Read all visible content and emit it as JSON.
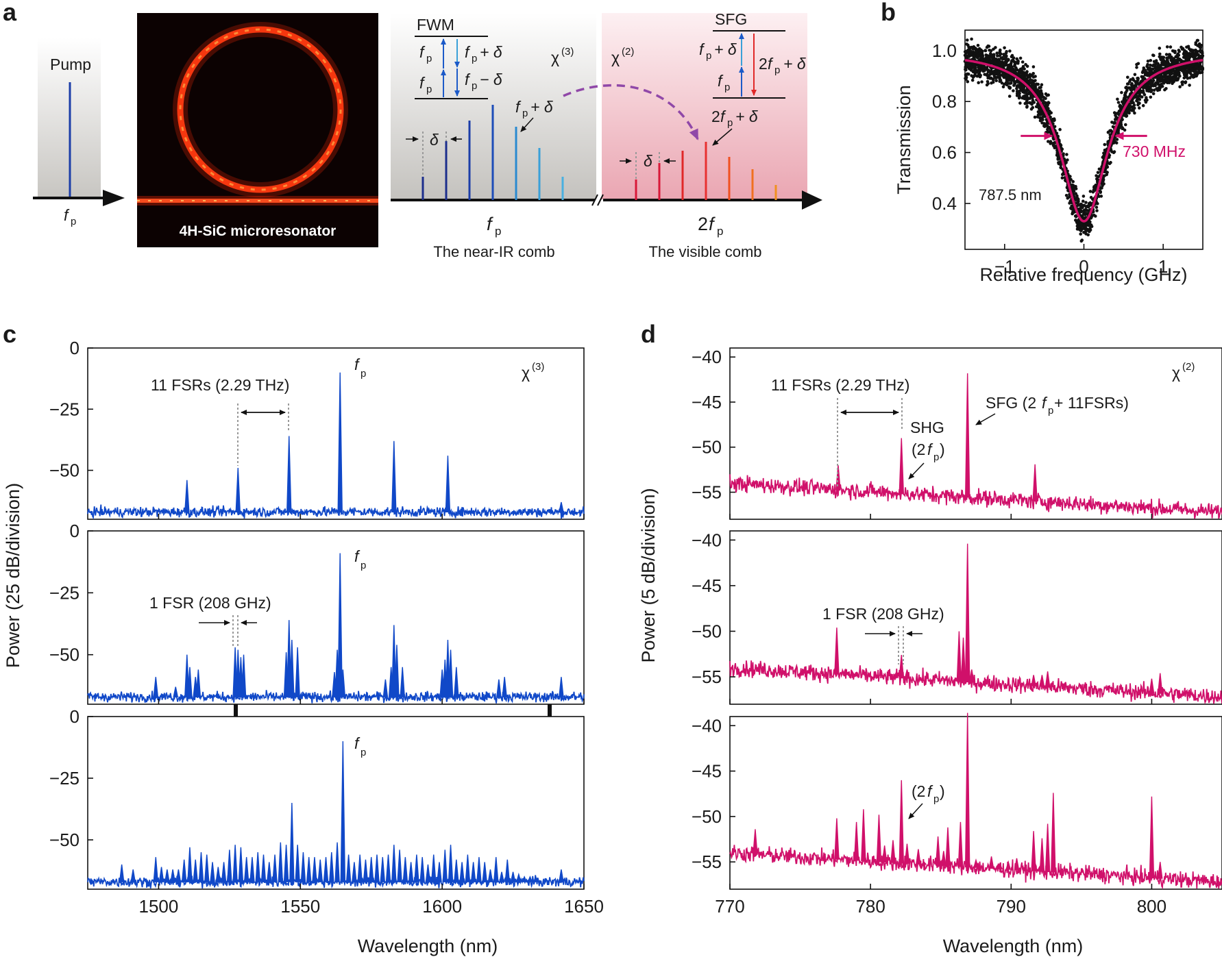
{
  "panel_labels": [
    "a",
    "b",
    "c",
    "d"
  ],
  "schematic": {
    "pump": "Pump",
    "fp": "f",
    "p": "p",
    "ring_label": "4H-SiC microresonator",
    "fwm": "FWM",
    "sfg": "SFG",
    "chi3": "χ",
    "chi3_sup": "(3)",
    "chi2": "χ",
    "chi2_sup": "(2)",
    "plus_delta": "+ δ",
    "minus_delta": "− δ",
    "two": "2",
    "delta": "δ",
    "nearir_caption": "The near-IR comb",
    "visible_caption": "The visible comb"
  },
  "colors": {
    "blue": "#1048c8",
    "magenta": "#d0106a",
    "purple_arrow": "#9048a8",
    "dark_blue": "#1c2e8c",
    "light_blue": "#3aa0d8",
    "red": "#e02828",
    "orange": "#f08020"
  },
  "chart_data": [
    {
      "panel": "b",
      "type": "scatter",
      "xlabel": "Relative frequency (GHz)",
      "ylabel": "Transmission",
      "xlim": [
        -1.5,
        1.5
      ],
      "ylim": [
        0.22,
        1.08
      ],
      "xticks": [
        "−1",
        "0",
        "1"
      ],
      "yticks": [
        "0.4",
        "0.6",
        "0.8",
        "1.0"
      ],
      "ytick_values": [
        0.4,
        0.6,
        0.8,
        1.0
      ],
      "xtick_values": [
        -1,
        0,
        1
      ],
      "fit": {
        "center": 0.0,
        "fwhm_ghz": 0.73,
        "min": 0.33,
        "baseline": 1.0
      },
      "annotations": {
        "linewidth": "730 MHz",
        "wavelength": "787.5 nm"
      }
    },
    {
      "panel": "c",
      "type": "line",
      "xlabel": "Wavelength (nm)",
      "ylabel": "Power  (25 dB/division)",
      "xlim": [
        1475,
        1650
      ],
      "ylim": [
        -70,
        0
      ],
      "xticks": [
        "1500",
        "1550",
        "1600",
        "1650"
      ],
      "xtick_values": [
        1500,
        1550,
        1600,
        1650
      ],
      "yticks": [
        "0",
        "−25",
        "−50"
      ],
      "ytick_values": [
        0,
        -25,
        -50
      ],
      "noise_floor": -67,
      "subpanels": [
        {
          "peaks": [
            [
              1510,
              -54
            ],
            [
              1528,
              -49
            ],
            [
              1546,
              -36
            ],
            [
              1564,
              -10
            ],
            [
              1583,
              -38
            ],
            [
              1602,
              -44
            ],
            [
              1642,
              -63
            ]
          ],
          "annotations": {
            "fsr": "11 FSRs (2.29 THz)",
            "chi": "χ",
            "chi_sup": "(3)"
          }
        },
        {
          "peaks": [
            [
              1499,
              -59
            ],
            [
              1506,
              -63
            ],
            [
              1510,
              -50
            ],
            [
              1511,
              -55
            ],
            [
              1513,
              -59
            ],
            [
              1514,
              -56
            ],
            [
              1527,
              -47
            ],
            [
              1528,
              -48
            ],
            [
              1529,
              -51
            ],
            [
              1530,
              -50
            ],
            [
              1545,
              -49
            ],
            [
              1546,
              -36
            ],
            [
              1547,
              -44
            ],
            [
              1549,
              -47
            ],
            [
              1562,
              -57
            ],
            [
              1563,
              -48
            ],
            [
              1564,
              -9
            ],
            [
              1565,
              -56
            ],
            [
              1580,
              -60
            ],
            [
              1582,
              -55
            ],
            [
              1583,
              -38
            ],
            [
              1584,
              -46
            ],
            [
              1586,
              -55
            ],
            [
              1600,
              -56
            ],
            [
              1601,
              -52
            ],
            [
              1602,
              -44
            ],
            [
              1603,
              -48
            ],
            [
              1605,
              -55
            ],
            [
              1620,
              -60
            ],
            [
              1622,
              -59
            ],
            [
              1642,
              -59
            ]
          ],
          "annotations": {
            "fsr": "1 FSR (208 GHz)"
          }
        },
        {
          "peaks": [
            [
              1487,
              -60
            ],
            [
              1491,
              -62
            ],
            [
              1499,
              -57
            ],
            [
              1501,
              -61
            ],
            [
              1503,
              -62
            ],
            [
              1505,
              -62
            ],
            [
              1507,
              -62
            ],
            [
              1509,
              -58
            ],
            [
              1511,
              -53
            ],
            [
              1513,
              -58
            ],
            [
              1515,
              -55
            ],
            [
              1517,
              -56
            ],
            [
              1519,
              -59
            ],
            [
              1521,
              -61
            ],
            [
              1523,
              -59
            ],
            [
              1525,
              -54
            ],
            [
              1527,
              -52
            ],
            [
              1529,
              -53
            ],
            [
              1531,
              -57
            ],
            [
              1533,
              -57
            ],
            [
              1535,
              -55
            ],
            [
              1537,
              -56
            ],
            [
              1539,
              -59
            ],
            [
              1541,
              -56
            ],
            [
              1543,
              -51
            ],
            [
              1545,
              -52
            ],
            [
              1547,
              -35
            ],
            [
              1549,
              -52
            ],
            [
              1551,
              -55
            ],
            [
              1553,
              -57
            ],
            [
              1555,
              -57
            ],
            [
              1557,
              -58
            ],
            [
              1559,
              -57
            ],
            [
              1561,
              -55
            ],
            [
              1563,
              -51
            ],
            [
              1565,
              -10
            ],
            [
              1567,
              -56
            ],
            [
              1569,
              -59
            ],
            [
              1571,
              -56
            ],
            [
              1573,
              -58
            ],
            [
              1575,
              -57
            ],
            [
              1577,
              -56
            ],
            [
              1579,
              -57
            ],
            [
              1581,
              -56
            ],
            [
              1583,
              -52
            ],
            [
              1585,
              -54
            ],
            [
              1587,
              -57
            ],
            [
              1589,
              -59
            ],
            [
              1591,
              -56
            ],
            [
              1593,
              -57
            ],
            [
              1595,
              -60
            ],
            [
              1597,
              -56
            ],
            [
              1599,
              -59
            ],
            [
              1601,
              -54
            ],
            [
              1603,
              -52
            ],
            [
              1605,
              -58
            ],
            [
              1607,
              -59
            ],
            [
              1609,
              -56
            ],
            [
              1611,
              -59
            ],
            [
              1613,
              -57
            ],
            [
              1615,
              -59
            ],
            [
              1617,
              -62
            ],
            [
              1619,
              -57
            ],
            [
              1621,
              -63
            ],
            [
              1623,
              -58
            ],
            [
              1625,
              -63
            ],
            [
              1627,
              -64
            ],
            [
              1629,
              -65
            ],
            [
              1631,
              -65
            ],
            [
              1633,
              -65
            ],
            [
              1642,
              -62
            ]
          ],
          "annotations": {}
        }
      ]
    },
    {
      "panel": "d",
      "type": "line",
      "xlabel": "Wavelength (nm)",
      "ylabel": "Power (5 dB/division)",
      "xlim": [
        770,
        805
      ],
      "ylim": [
        -58,
        -39
      ],
      "xticks": [
        "770",
        "780",
        "790",
        "800"
      ],
      "xtick_values": [
        770,
        780,
        790,
        800
      ],
      "yticks": [
        "−40",
        "−45",
        "−50",
        "−55"
      ],
      "ytick_values": [
        -40,
        -45,
        -50,
        -55
      ],
      "noise_floor_start": -54.0,
      "noise_floor_end": -57.2,
      "subpanels": [
        {
          "peaks": [
            [
              777.7,
              -52.0
            ],
            [
              782.2,
              -49.0
            ],
            [
              786.9,
              -41.8
            ],
            [
              791.7,
              -51.9
            ]
          ],
          "annotations": {
            "fsr": "11 FSRs (2.29 THz)",
            "shg": "SHG",
            "shg2": "(2",
            "sfg": "SFG (2",
            "sfg2": " + 11FSRs)",
            "chi": "χ",
            "chi_sup": "(2)"
          }
        },
        {
          "peaks": [
            [
              777.6,
              -49.6
            ],
            [
              778.2,
              -54.2
            ],
            [
              778.7,
              -54.4
            ],
            [
              781.8,
              -54.6
            ],
            [
              782.2,
              -52.6
            ],
            [
              782.6,
              -54.2
            ],
            [
              786.3,
              -50.0
            ],
            [
              786.6,
              -50.7
            ],
            [
              786.9,
              -40.4
            ],
            [
              787.2,
              -54.2
            ],
            [
              791.6,
              -54.8
            ],
            [
              792.2,
              -54.8
            ],
            [
              792.6,
              -54.4
            ],
            [
              800.0,
              -55.2
            ],
            [
              800.6,
              -54.6
            ]
          ],
          "annotations": {
            "fsr": "1 FSR (208 GHz)"
          }
        },
        {
          "peaks": [
            [
              771.8,
              -51.4
            ],
            [
              777.6,
              -50.2
            ],
            [
              779.0,
              -50.6
            ],
            [
              779.5,
              -49.2
            ],
            [
              780.6,
              -49.8
            ],
            [
              781.0,
              -53.2
            ],
            [
              781.6,
              -52.6
            ],
            [
              782.2,
              -46.0
            ],
            [
              782.6,
              -53.0
            ],
            [
              783.4,
              -53.6
            ],
            [
              783.8,
              -55.0
            ],
            [
              784.8,
              -52.2
            ],
            [
              785.2,
              -53.8
            ],
            [
              785.5,
              -51.2
            ],
            [
              786.4,
              -50.6
            ],
            [
              786.9,
              -38.6
            ],
            [
              787.5,
              -54.8
            ],
            [
              788.6,
              -54.4
            ],
            [
              789.2,
              -55.2
            ],
            [
              789.8,
              -55.0
            ],
            [
              790.4,
              -54.6
            ],
            [
              791.0,
              -55.6
            ],
            [
              791.6,
              -51.6
            ],
            [
              792.2,
              -52.4
            ],
            [
              792.6,
              -50.8
            ],
            [
              793.0,
              -47.4
            ],
            [
              795.4,
              -55.8
            ],
            [
              800.0,
              -47.8
            ],
            [
              800.6,
              -55.0
            ]
          ],
          "annotations": {
            "shg2": "(2"
          }
        }
      ]
    }
  ]
}
